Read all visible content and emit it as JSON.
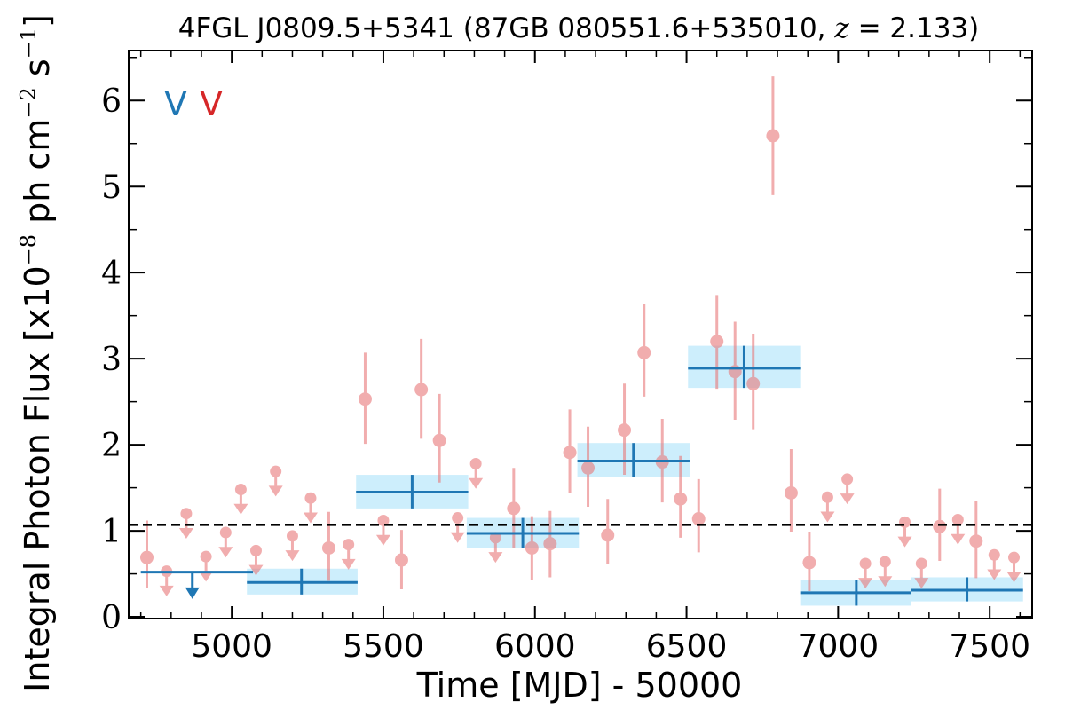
{
  "chart_data": {
    "type": "scatter",
    "title": "4FGL J0809.5+5341 (87GB 080551.6+535010, z = 2.133)",
    "title_parts": {
      "prefix": "4FGL J0809.5+5341 (87GB 080551.6+535010, ",
      "z_symbol": "z",
      "z_value": " = 2.133",
      "suffix": ")"
    },
    "xlabel": "Time [MJD] - 50000",
    "ylabel": "Integral Photon Flux [x10",
    "ylabel_exp1": "−8",
    "ylabel_mid": " ph cm",
    "ylabel_exp2": "−2",
    "ylabel_mid2": " s",
    "ylabel_exp3": "−1",
    "ylabel_end": "]",
    "xlim": [
      4660,
      7640
    ],
    "ylim": [
      -0.02,
      6.58
    ],
    "xticks": [
      "5000",
      "5500",
      "6000",
      "6500",
      "7000",
      "7500"
    ],
    "yticks": [
      "0",
      "1",
      "2",
      "3",
      "4",
      "5",
      "6"
    ],
    "legend_markers": [
      "V",
      "V"
    ],
    "colors": {
      "bin_line": "#1f77b4",
      "bin_band": "#cdeefc",
      "points": "#e8787a",
      "mean_line": "#000000"
    },
    "mean_flux": 1.07,
    "series": [
      {
        "role": "long-bin",
        "bins": [
          {
            "x_start": 4700,
            "x_end": 5070,
            "x_center": 4870,
            "y": 0.52,
            "upper_limit": true,
            "limit_y": 0.52
          },
          {
            "x_start": 5050,
            "x_end": 5415,
            "x_center": 5230,
            "y": 0.4,
            "y_low": 0.26,
            "y_high": 0.56
          },
          {
            "x_start": 5410,
            "x_end": 5780,
            "x_center": 5595,
            "y": 1.45,
            "y_low": 1.26,
            "y_high": 1.65
          },
          {
            "x_start": 5775,
            "x_end": 6145,
            "x_center": 5960,
            "y": 0.97,
            "y_low": 0.8,
            "y_high": 1.15
          },
          {
            "x_start": 6140,
            "x_end": 6510,
            "x_center": 6325,
            "y": 1.81,
            "y_low": 1.62,
            "y_high": 2.02
          },
          {
            "x_start": 6505,
            "x_end": 6875,
            "x_center": 6690,
            "y": 2.89,
            "y_low": 2.66,
            "y_high": 3.15
          },
          {
            "x_start": 6875,
            "x_end": 7240,
            "x_center": 7060,
            "y": 0.28,
            "y_low": 0.13,
            "y_high": 0.43
          },
          {
            "x_start": 7240,
            "x_end": 7610,
            "x_center": 7425,
            "y": 0.31,
            "y_low": 0.18,
            "y_high": 0.46
          }
        ]
      },
      {
        "role": "short-bin",
        "points": [
          {
            "x": 4720,
            "y": 0.69,
            "y_low": 0.33,
            "y_high": 1.12
          },
          {
            "x": 4785,
            "y": 0.53,
            "upper_limit": true
          },
          {
            "x": 4850,
            "y": 1.2,
            "upper_limit": true
          },
          {
            "x": 4915,
            "y": 0.7,
            "upper_limit": true
          },
          {
            "x": 4980,
            "y": 0.98,
            "upper_limit": true
          },
          {
            "x": 5030,
            "y": 1.48,
            "upper_limit": true
          },
          {
            "x": 5080,
            "y": 0.77,
            "upper_limit": true
          },
          {
            "x": 5145,
            "y": 1.69,
            "upper_limit": true
          },
          {
            "x": 5200,
            "y": 0.94,
            "upper_limit": true
          },
          {
            "x": 5260,
            "y": 1.38,
            "upper_limit": true
          },
          {
            "x": 5320,
            "y": 0.8,
            "y_low": 0.42,
            "y_high": 1.22
          },
          {
            "x": 5385,
            "y": 0.84,
            "upper_limit": true
          },
          {
            "x": 5440,
            "y": 2.53,
            "y_low": 2.01,
            "y_high": 3.07
          },
          {
            "x": 5500,
            "y": 1.12,
            "upper_limit": true
          },
          {
            "x": 5560,
            "y": 0.66,
            "y_low": 0.32,
            "y_high": 1.01
          },
          {
            "x": 5625,
            "y": 2.64,
            "y_low": 2.07,
            "y_high": 3.23
          },
          {
            "x": 5685,
            "y": 2.05,
            "y_low": 1.56,
            "y_high": 2.59
          },
          {
            "x": 5745,
            "y": 1.15,
            "upper_limit": true
          },
          {
            "x": 5805,
            "y": 1.78,
            "upper_limit": true
          },
          {
            "x": 5870,
            "y": 0.92,
            "upper_limit": true
          },
          {
            "x": 5930,
            "y": 1.26,
            "y_low": 0.8,
            "y_high": 1.73
          },
          {
            "x": 5990,
            "y": 0.8,
            "y_low": 0.43,
            "y_high": 1.17
          },
          {
            "x": 6050,
            "y": 0.85,
            "y_low": 0.46,
            "y_high": 1.23
          },
          {
            "x": 6115,
            "y": 1.91,
            "y_low": 1.44,
            "y_high": 2.41
          },
          {
            "x": 6175,
            "y": 1.73,
            "y_low": 1.28,
            "y_high": 2.21
          },
          {
            "x": 6240,
            "y": 0.95,
            "y_low": 0.62,
            "y_high": 1.37
          },
          {
            "x": 6295,
            "y": 2.17,
            "y_low": 1.65,
            "y_high": 2.71
          },
          {
            "x": 6360,
            "y": 3.07,
            "y_low": 2.56,
            "y_high": 3.63
          },
          {
            "x": 6420,
            "y": 1.8,
            "y_low": 1.33,
            "y_high": 2.3
          },
          {
            "x": 6480,
            "y": 1.37,
            "y_low": 0.92,
            "y_high": 1.87
          },
          {
            "x": 6540,
            "y": 1.14,
            "y_low": 0.75,
            "y_high": 1.6
          },
          {
            "x": 6600,
            "y": 3.2,
            "y_low": 2.65,
            "y_high": 3.74
          },
          {
            "x": 6660,
            "y": 2.85,
            "y_low": 2.29,
            "y_high": 3.43
          },
          {
            "x": 6720,
            "y": 2.71,
            "y_low": 2.18,
            "y_high": 3.29
          },
          {
            "x": 6785,
            "y": 5.59,
            "y_low": 4.9,
            "y_high": 6.28
          },
          {
            "x": 6845,
            "y": 1.44,
            "y_low": 0.99,
            "y_high": 1.95
          },
          {
            "x": 6905,
            "y": 0.63,
            "y_low": 0.3,
            "y_high": 0.99
          },
          {
            "x": 6965,
            "y": 1.39,
            "upper_limit": true
          },
          {
            "x": 7030,
            "y": 1.6,
            "upper_limit": true
          },
          {
            "x": 7090,
            "y": 0.62,
            "upper_limit": true
          },
          {
            "x": 7155,
            "y": 0.64,
            "upper_limit": true
          },
          {
            "x": 7220,
            "y": 1.1,
            "upper_limit": true
          },
          {
            "x": 7275,
            "y": 0.62,
            "upper_limit": true
          },
          {
            "x": 7335,
            "y": 1.05,
            "y_low": 0.65,
            "y_high": 1.49
          },
          {
            "x": 7395,
            "y": 1.13,
            "upper_limit": true
          },
          {
            "x": 7455,
            "y": 0.88,
            "y_low": 0.45,
            "y_high": 1.35
          },
          {
            "x": 7515,
            "y": 0.72,
            "upper_limit": true
          },
          {
            "x": 7580,
            "y": 0.69,
            "upper_limit": true
          }
        ]
      }
    ]
  }
}
